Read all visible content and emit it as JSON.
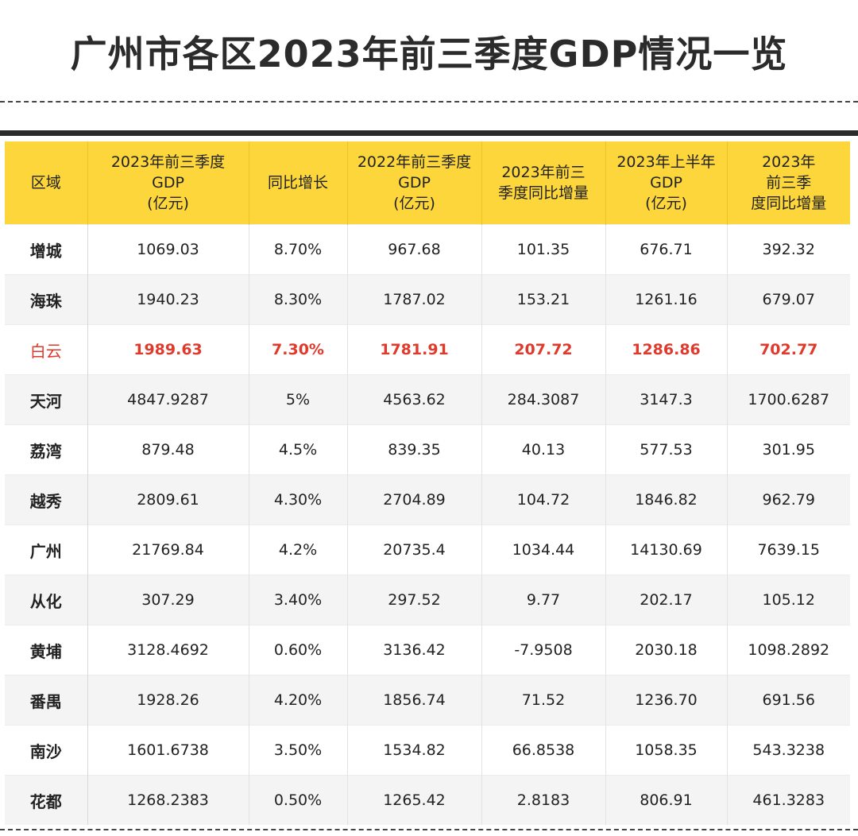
{
  "title": "广州市各区2023年前三季度GDP情况一览",
  "columns": [
    "区域",
    "2023年前三季度\nGDP\n(亿元)",
    "同比增长",
    "2022年前三季度\nGDP\n(亿元)",
    "2023年前三\n季度同比增量",
    "2023年上半年\nGDP\n(亿元)",
    "2023年\n前三季\n度同比增量"
  ],
  "rows": [
    [
      "增城",
      "1069.03",
      "8.70%",
      "967.68",
      "101.35",
      "676.71",
      "392.32"
    ],
    [
      "海珠",
      "1940.23",
      "8.30%",
      "1787.02",
      "153.21",
      "1261.16",
      "679.07"
    ],
    [
      "白云",
      "1989.63",
      "7.30%",
      "1781.91",
      "207.72",
      "1286.86",
      "702.77"
    ],
    [
      "天河",
      "4847.9287",
      "5%",
      "4563.62",
      "284.3087",
      "3147.3",
      "1700.6287"
    ],
    [
      "荔湾",
      "879.48",
      "4.5%",
      "839.35",
      "40.13",
      "577.53",
      "301.95"
    ],
    [
      "越秀",
      "2809.61",
      "4.30%",
      "2704.89",
      "104.72",
      "1846.82",
      "962.79"
    ],
    [
      "广州",
      "21769.84",
      "4.2%",
      "20735.4",
      "1034.44",
      "14130.69",
      "7639.15"
    ],
    [
      "从化",
      "307.29",
      "3.40%",
      "297.52",
      "9.77",
      "202.17",
      "105.12"
    ],
    [
      "黄埔",
      "3128.4692",
      "0.60%",
      "3136.42",
      "-7.9508",
      "2030.18",
      "1098.2892"
    ],
    [
      "番禺",
      "1928.26",
      "4.20%",
      "1856.74",
      "71.52",
      "1236.70",
      "691.56"
    ],
    [
      "南沙",
      "1601.6738",
      "3.50%",
      "1534.82",
      "66.8538",
      "1058.35",
      "543.3238"
    ],
    [
      "花都",
      "1268.2383",
      "0.50%",
      "1265.42",
      "2.8183",
      "806.91",
      "461.3283"
    ]
  ],
  "highlight_row_index": 2,
  "colors": {
    "header_background": "#fcd63a",
    "highlight_text": "#e03a2d",
    "stripe_background": "#f4f4f4"
  }
}
